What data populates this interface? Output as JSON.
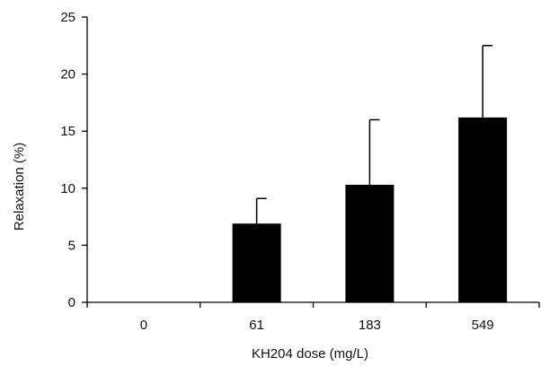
{
  "chart_data": {
    "type": "bar",
    "title": "",
    "xlabel": "KH204 dose (mg/L)",
    "ylabel": "Relaxation (%)",
    "categories": [
      "0",
      "61",
      "183",
      "549"
    ],
    "values": [
      0,
      6.9,
      10.3,
      16.2
    ],
    "error_upper": [
      0,
      2.2,
      5.7,
      6.3
    ],
    "ylim": [
      0,
      25
    ],
    "yticks": [
      0,
      5,
      10,
      15,
      20,
      25
    ],
    "ytick_labels": [
      "0",
      "5",
      "10",
      "15",
      "20",
      "25"
    ],
    "grid": false,
    "legend": "none",
    "bar_color": "#000000",
    "error_bar_color": "#000000"
  }
}
